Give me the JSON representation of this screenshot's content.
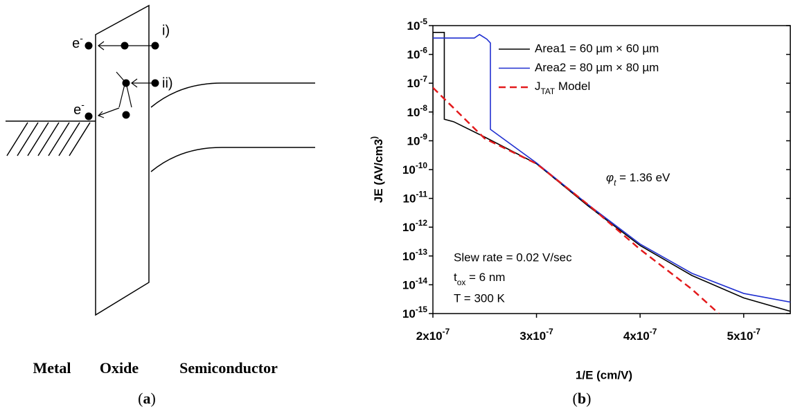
{
  "diagram": {
    "electron_top": "e-",
    "electron_bottom": "e-",
    "path_i": "i)",
    "path_ii": "ii)",
    "region_metal": "Metal",
    "region_oxide": "Oxide",
    "region_semiconductor": "Semiconductor",
    "caption_a": "(a)",
    "caption_b": "(b)"
  },
  "chart_data": {
    "type": "line",
    "xlabel": "1/E (cm/V)",
    "ylabel": "JE (AV/cm3)",
    "xlim": [
      2e-07,
      5.45e-07
    ],
    "ylim": [
      1e-15,
      1e-05
    ],
    "ylog": true,
    "xticks": [
      {
        "value": 2e-07,
        "label": "2x10-7"
      },
      {
        "value": 3e-07,
        "label": "3x10-7"
      },
      {
        "value": 4e-07,
        "label": "4x10-7"
      },
      {
        "value": 5e-07,
        "label": "5x10-7"
      }
    ],
    "yticks": [
      {
        "value": 1e-05,
        "label": "10-5"
      },
      {
        "value": 1e-06,
        "label": "10-6"
      },
      {
        "value": 1e-07,
        "label": "10-7"
      },
      {
        "value": 1e-08,
        "label": "10-8"
      },
      {
        "value": 1e-09,
        "label": "10-9"
      },
      {
        "value": 1e-10,
        "label": "10-10"
      },
      {
        "value": 1e-11,
        "label": "10-11"
      },
      {
        "value": 1e-12,
        "label": "10-12"
      },
      {
        "value": 1e-13,
        "label": "10-13"
      },
      {
        "value": 1e-14,
        "label": "10-14"
      },
      {
        "value": 1e-15,
        "label": "10-15"
      }
    ],
    "legend": "upper left",
    "annotations": [
      "φt = 1.36 eV",
      "Slew rate = 0.02 V/sec",
      "tox = 6 nm",
      "T = 300 K"
    ],
    "series": [
      {
        "name": "Area1 = 60 µm × 60 µm",
        "color": "#000000",
        "dash": false,
        "x": [
          2e-07,
          2e-07,
          2.11e-07,
          2.11e-07,
          2.2e-07,
          2.5e-07,
          3e-07,
          3.5e-07,
          4e-07,
          4.5e-07,
          5e-07,
          5.45e-07
        ],
        "values": [
          8e-09,
          5.8e-06,
          5.8e-06,
          5.6e-09,
          4.6e-09,
          1.35e-09,
          1.6e-10,
          5.4e-12,
          2.3e-13,
          2.1e-14,
          3.5e-15,
          1.2e-15
        ]
      },
      {
        "name": "Area2 = 80 µm × 80 µm",
        "color": "#1f2fd0",
        "dash": false,
        "x": [
          2e-07,
          2.4e-07,
          2.45e-07,
          2.52e-07,
          2.555e-07,
          2.555e-07,
          3e-07,
          3.5e-07,
          4e-07,
          4.5e-07,
          5e-07,
          5.45e-07
        ],
        "values": [
          3.7e-06,
          3.7e-06,
          4.9e-06,
          3.4e-06,
          2.5e-06,
          2.5e-09,
          1.7e-10,
          6e-12,
          2.6e-13,
          2.5e-14,
          5e-15,
          2.5e-15
        ]
      },
      {
        "name": "JTAT Model",
        "color": "#e31a1c",
        "dash": true,
        "x": [
          2e-07,
          2.5e-07,
          3e-07,
          3.5e-07,
          4e-07,
          4.5e-07,
          4.76e-07
        ],
        "values": [
          7e-08,
          1.2e-09,
          1.6e-10,
          6e-12,
          1.7e-13,
          7e-15,
          1e-15
        ]
      }
    ]
  }
}
